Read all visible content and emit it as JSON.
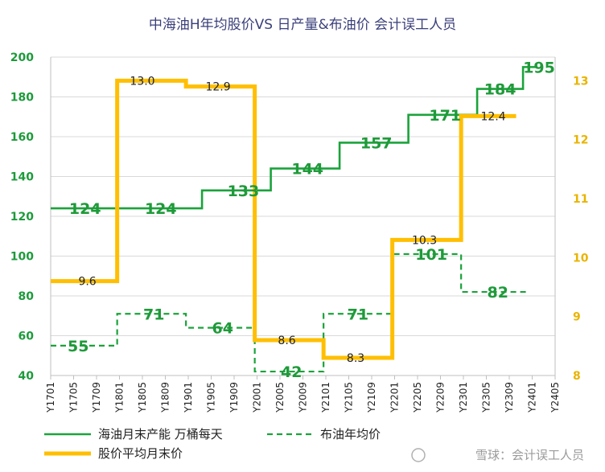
{
  "chart_data": {
    "type": "line",
    "title": "中海油H年均股价VS 日产量&布油价   会计误工人员",
    "x": [
      "Y1701",
      "Y1705",
      "Y1709",
      "Y1801",
      "Y1805",
      "Y1809",
      "Y1901",
      "Y1905",
      "Y1909",
      "Y2001",
      "Y2005",
      "Y2009",
      "Y2101",
      "Y2105",
      "Y2109",
      "Y2201",
      "Y2205",
      "Y2209",
      "Y2301",
      "Y2305",
      "Y2309",
      "Y2401",
      "Y2405"
    ],
    "y_left": {
      "min": 40,
      "max": 200,
      "ticks": [
        40,
        60,
        80,
        100,
        120,
        140,
        160,
        180,
        200
      ]
    },
    "y_right": {
      "min": 8,
      "max": 13.4,
      "ticks": [
        8,
        9,
        10,
        11,
        12,
        13
      ]
    },
    "series": [
      {
        "name": "海油月末产能 万桶每天",
        "axis": "left",
        "color": "#1aa33a",
        "style": "solid",
        "x_range": [
          0,
          21.2
        ],
        "segments": [
          {
            "from": 0,
            "to": 6.6,
            "value": 124
          },
          {
            "from": 6.6,
            "to": 9.6,
            "value": 133
          },
          {
            "from": 9.6,
            "to": 12.6,
            "value": 144
          },
          {
            "from": 12.6,
            "to": 15.6,
            "value": 157
          },
          {
            "from": 15.6,
            "to": 18.6,
            "value": 171
          },
          {
            "from": 18.6,
            "to": 20.6,
            "value": 184
          },
          {
            "from": 20.6,
            "to": 21.2,
            "value": 195
          }
        ],
        "labels": [
          {
            "text": "124",
            "x": 1.5,
            "value": 124
          },
          {
            "text": "124",
            "x": 4.8,
            "value": 124
          },
          {
            "text": "133",
            "x": 8.4,
            "value": 133
          },
          {
            "text": "144",
            "x": 11.2,
            "value": 144
          },
          {
            "text": "157",
            "x": 14.2,
            "value": 157
          },
          {
            "text": "171",
            "x": 17.2,
            "value": 171
          },
          {
            "text": "184",
            "x": 19.6,
            "value": 184
          },
          {
            "text": "195",
            "x": 21.3,
            "value": 195
          }
        ]
      },
      {
        "name": "布油年均价",
        "axis": "left",
        "color": "#1aa33a",
        "style": "dashed",
        "x_range": [
          0,
          20.8
        ],
        "segments": [
          {
            "from": 0,
            "to": 2.9,
            "value": 55
          },
          {
            "from": 2.9,
            "to": 5.9,
            "value": 71
          },
          {
            "from": 5.9,
            "to": 8.9,
            "value": 64
          },
          {
            "from": 8.9,
            "to": 11.9,
            "value": 42
          },
          {
            "from": 11.9,
            "to": 14.9,
            "value": 71
          },
          {
            "from": 14.9,
            "to": 17.9,
            "value": 101
          },
          {
            "from": 17.9,
            "to": 20.8,
            "value": 82
          }
        ],
        "labels": [
          {
            "text": "55",
            "x": 1.2,
            "value": 55
          },
          {
            "text": "71",
            "x": 4.5,
            "value": 71
          },
          {
            "text": "64",
            "x": 7.5,
            "value": 64
          },
          {
            "text": "42",
            "x": 10.5,
            "value": 42
          },
          {
            "text": "71",
            "x": 13.4,
            "value": 71
          },
          {
            "text": "101",
            "x": 16.6,
            "value": 101
          },
          {
            "text": "82",
            "x": 19.5,
            "value": 82
          }
        ]
      },
      {
        "name": "股价平均月末价",
        "axis": "right",
        "color": "#ffbf00",
        "style": "thick",
        "x_range": [
          0,
          20.3
        ],
        "segments": [
          {
            "from": 0,
            "to": 2.9,
            "value": 9.6
          },
          {
            "from": 2.9,
            "to": 5.9,
            "value": 13.0
          },
          {
            "from": 5.9,
            "to": 8.9,
            "value": 12.9
          },
          {
            "from": 8.9,
            "to": 11.9,
            "value": 8.6
          },
          {
            "from": 11.9,
            "to": 14.9,
            "value": 8.3
          },
          {
            "from": 14.9,
            "to": 17.9,
            "value": 10.3
          },
          {
            "from": 17.9,
            "to": 20.3,
            "value": 12.4
          }
        ],
        "labels": [
          {
            "text": "9.6",
            "x": 1.6,
            "value": 9.6
          },
          {
            "text": "13.0",
            "x": 4.0,
            "value": 13.0
          },
          {
            "text": "12.9",
            "x": 7.3,
            "value": 12.9
          },
          {
            "text": "8.6",
            "x": 10.3,
            "value": 8.6
          },
          {
            "text": "8.3",
            "x": 13.3,
            "value": 8.3
          },
          {
            "text": "10.3",
            "x": 16.3,
            "value": 10.3
          },
          {
            "text": "12.4",
            "x": 19.3,
            "value": 12.4
          }
        ]
      }
    ],
    "legend": {
      "position": "bottom",
      "items": [
        {
          "label": "海油月末产能 万桶每天",
          "style": "solid",
          "color": "#1aa33a"
        },
        {
          "label": "布油年均价",
          "style": "dashed",
          "color": "#1aa33a"
        },
        {
          "label": "股价平均月末价",
          "style": "thick",
          "color": "#ffbf00"
        }
      ]
    },
    "watermark": "雪球：会计误工人员"
  }
}
